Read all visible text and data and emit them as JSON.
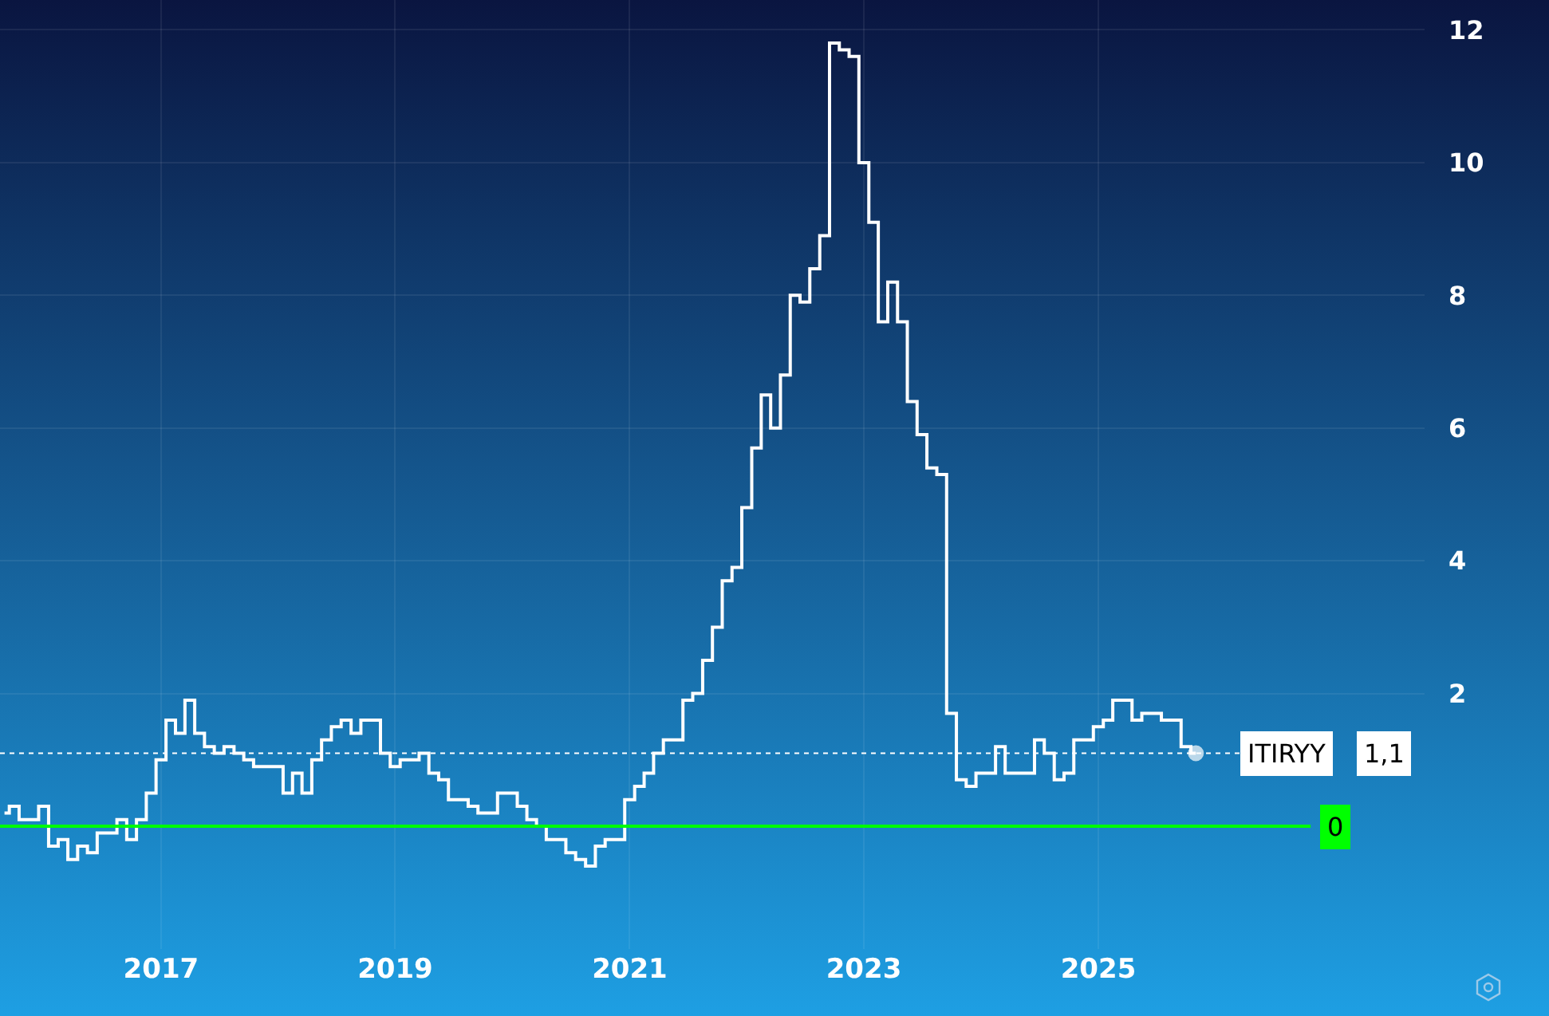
{
  "chart_data": {
    "type": "step",
    "x": [
      "2015-09",
      "2015-10",
      "2015-11",
      "2015-12",
      "2016-01",
      "2016-02",
      "2016-03",
      "2016-04",
      "2016-05",
      "2016-06",
      "2016-07",
      "2016-08",
      "2016-09",
      "2016-10",
      "2016-11",
      "2016-12",
      "2017-01",
      "2017-02",
      "2017-03",
      "2017-04",
      "2017-05",
      "2017-06",
      "2017-07",
      "2017-08",
      "2017-09",
      "2017-10",
      "2017-11",
      "2017-12",
      "2018-01",
      "2018-02",
      "2018-03",
      "2018-04",
      "2018-05",
      "2018-06",
      "2018-07",
      "2018-08",
      "2018-09",
      "2018-10",
      "2018-11",
      "2018-12",
      "2019-01",
      "2019-02",
      "2019-03",
      "2019-04",
      "2019-05",
      "2019-06",
      "2019-07",
      "2019-08",
      "2019-09",
      "2019-10",
      "2019-11",
      "2019-12",
      "2020-01",
      "2020-02",
      "2020-03",
      "2020-04",
      "2020-05",
      "2020-06",
      "2020-07",
      "2020-08",
      "2020-09",
      "2020-10",
      "2020-11",
      "2020-12",
      "2021-01",
      "2021-02",
      "2021-03",
      "2021-04",
      "2021-05",
      "2021-06",
      "2021-07",
      "2021-08",
      "2021-09",
      "2021-10",
      "2021-11",
      "2021-12",
      "2022-01",
      "2022-02",
      "2022-03",
      "2022-04",
      "2022-05",
      "2022-06",
      "2022-07",
      "2022-08",
      "2022-09",
      "2022-10",
      "2022-11",
      "2022-12",
      "2023-01",
      "2023-02",
      "2023-03",
      "2023-04",
      "2023-05",
      "2023-06",
      "2023-07",
      "2023-08",
      "2023-09",
      "2023-10",
      "2023-11",
      "2023-12",
      "2024-01",
      "2024-02",
      "2024-03",
      "2024-04",
      "2024-05",
      "2024-06",
      "2024-07",
      "2024-08",
      "2024-09",
      "2024-10",
      "2024-11",
      "2024-12",
      "2025-01",
      "2025-02",
      "2025-03",
      "2025-04",
      "2025-05",
      "2025-06",
      "2025-07",
      "2025-08",
      "2025-09",
      "2025-10",
      "2025-11"
    ],
    "series": [
      {
        "name": "ITIRYY",
        "color": "#ffffff",
        "values": [
          0.2,
          0.3,
          0.1,
          0.1,
          0.3,
          -0.3,
          -0.2,
          -0.5,
          -0.3,
          -0.4,
          -0.1,
          -0.1,
          0.1,
          -0.2,
          0.1,
          0.5,
          1.0,
          1.6,
          1.4,
          1.9,
          1.4,
          1.2,
          1.1,
          1.2,
          1.1,
          1.0,
          0.9,
          0.9,
          0.9,
          0.5,
          0.8,
          0.5,
          1.0,
          1.3,
          1.5,
          1.6,
          1.4,
          1.6,
          1.6,
          1.1,
          0.9,
          1.0,
          1.0,
          1.1,
          0.8,
          0.7,
          0.4,
          0.4,
          0.3,
          0.2,
          0.2,
          0.5,
          0.5,
          0.3,
          0.1,
          0.0,
          -0.2,
          -0.2,
          -0.4,
          -0.5,
          -0.6,
          -0.3,
          -0.2,
          -0.2,
          0.4,
          0.6,
          0.8,
          1.1,
          1.3,
          1.3,
          1.9,
          2.0,
          2.5,
          3.0,
          3.7,
          3.9,
          4.8,
          5.7,
          6.5,
          6.0,
          6.8,
          8.0,
          7.9,
          8.4,
          8.9,
          11.8,
          11.7,
          11.6,
          10.0,
          9.1,
          7.6,
          8.2,
          7.6,
          6.4,
          5.9,
          5.4,
          5.3,
          1.7,
          0.7,
          0.6,
          0.8,
          0.8,
          1.2,
          0.8,
          0.8,
          0.8,
          1.3,
          1.1,
          0.7,
          0.8,
          1.3,
          1.3,
          1.5,
          1.6,
          1.9,
          1.9,
          1.6,
          1.7,
          1.7,
          1.6,
          1.6,
          1.2,
          1.1
        ]
      }
    ],
    "xlim": [
      "2015-08-18",
      "2027-10-15"
    ],
    "xticks": [
      "2017",
      "2019",
      "2021",
      "2023",
      "2025"
    ],
    "ylim": [
      -1.85,
      12.45
    ],
    "yticks": [
      2,
      4,
      6,
      8,
      10,
      12
    ],
    "grid": true,
    "legend": false,
    "ref_lines": [
      {
        "axis": "y",
        "value": 0,
        "label": "0",
        "color": "#00ff00",
        "line_style": "solid"
      },
      {
        "axis": "y",
        "value": 1.1,
        "label": "1,1",
        "color": "#ffffff",
        "line_style": "dotted"
      }
    ]
  }
}
